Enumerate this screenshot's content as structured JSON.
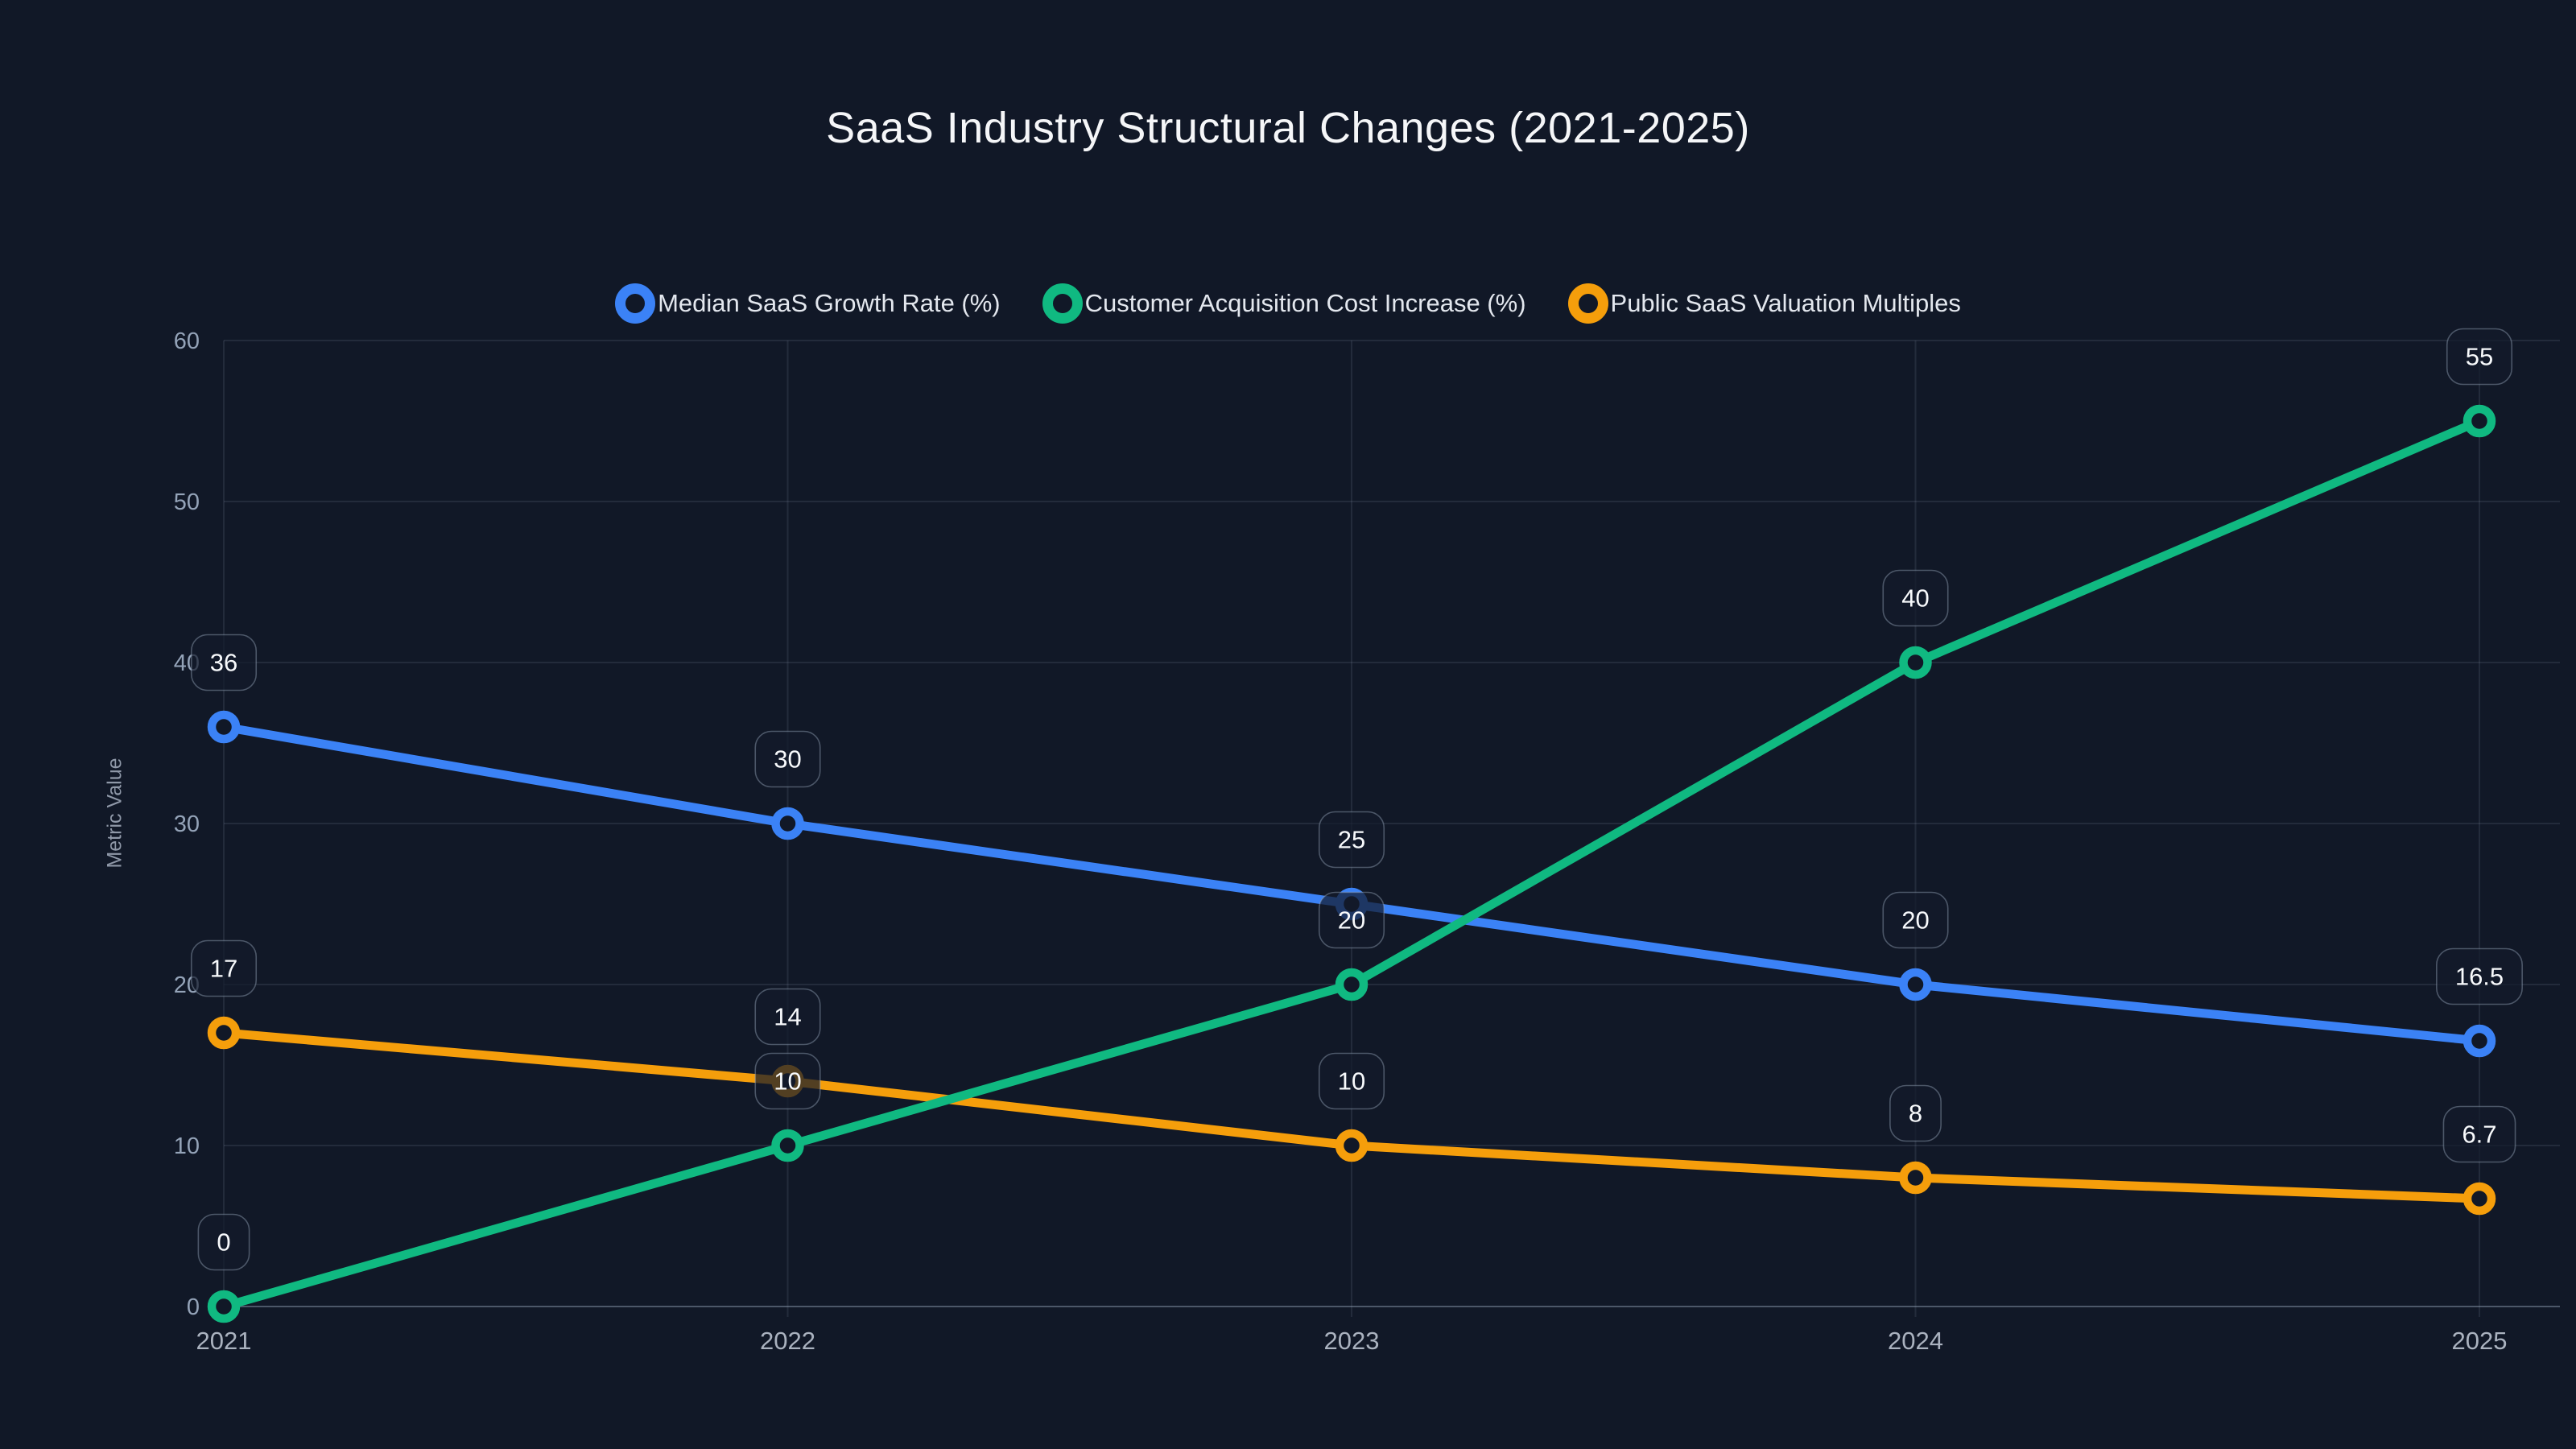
{
  "title": "SaaS Industry Structural Changes (2021-2025)",
  "chart_data": {
    "type": "line",
    "categories": [
      "2021",
      "2022",
      "2023",
      "2024",
      "2025"
    ],
    "series": [
      {
        "name": "Median SaaS Growth Rate (%)",
        "color": "#3b82f6",
        "values": [
          36,
          30,
          25,
          20,
          16.5
        ]
      },
      {
        "name": "Customer Acquisition Cost Increase (%)",
        "color": "#10b981",
        "values": [
          0,
          10,
          20,
          40,
          55
        ]
      },
      {
        "name": "Public SaaS Valuation Multiples",
        "color": "#f59e0b",
        "values": [
          17,
          14,
          10,
          8,
          6.7
        ]
      }
    ],
    "title": "SaaS Industry Structural Changes (2021-2025)",
    "xlabel": "",
    "ylabel": "Metric Value",
    "ylim": [
      0,
      60
    ],
    "y_ticks": [
      0,
      10,
      20,
      30,
      40,
      50,
      60
    ],
    "grid": true,
    "legend_position": "top",
    "point_labels_visible": true,
    "point_label_style": "rounded-pill"
  },
  "colors": {
    "background": "#111827",
    "grid": "rgba(148,163,184,0.14)",
    "axis": "rgba(148,163,184,0.45)",
    "y_tick_text": "#94a3b8",
    "x_tick_text": "#aab2bf",
    "title_text": "#f5f6f8",
    "legend_text": "#e3e7ee",
    "pill_bg": "rgba(19,27,43,0.72)",
    "pill_border": "rgba(148,163,184,0.45)",
    "pill_text": "#f8fafc"
  }
}
